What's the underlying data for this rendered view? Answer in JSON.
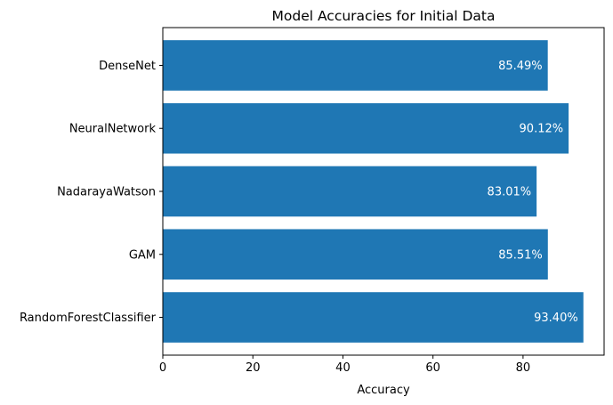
{
  "chart_data": {
    "type": "bar",
    "orientation": "horizontal",
    "title": "Model Accuracies for Initial Data",
    "xlabel": "Accuracy",
    "ylabel": "",
    "categories": [
      "RandomForestClassifier",
      "GAM",
      "NadarayaWatson",
      "NeuralNetwork",
      "DenseNet"
    ],
    "values": [
      93.4,
      85.51,
      83.01,
      90.12,
      85.49
    ],
    "data_labels": [
      "93.40%",
      "85.51%",
      "83.01%",
      "90.12%",
      "85.49%"
    ],
    "xlim": [
      0,
      98
    ],
    "xticks": [
      0,
      20,
      40,
      60,
      80
    ],
    "xtick_labels": [
      "0",
      "20",
      "40",
      "60",
      "80"
    ],
    "grid": false,
    "colors": {
      "bar": "#1f77b4",
      "bar_label": "#ffffff",
      "axis": "#000000"
    }
  }
}
